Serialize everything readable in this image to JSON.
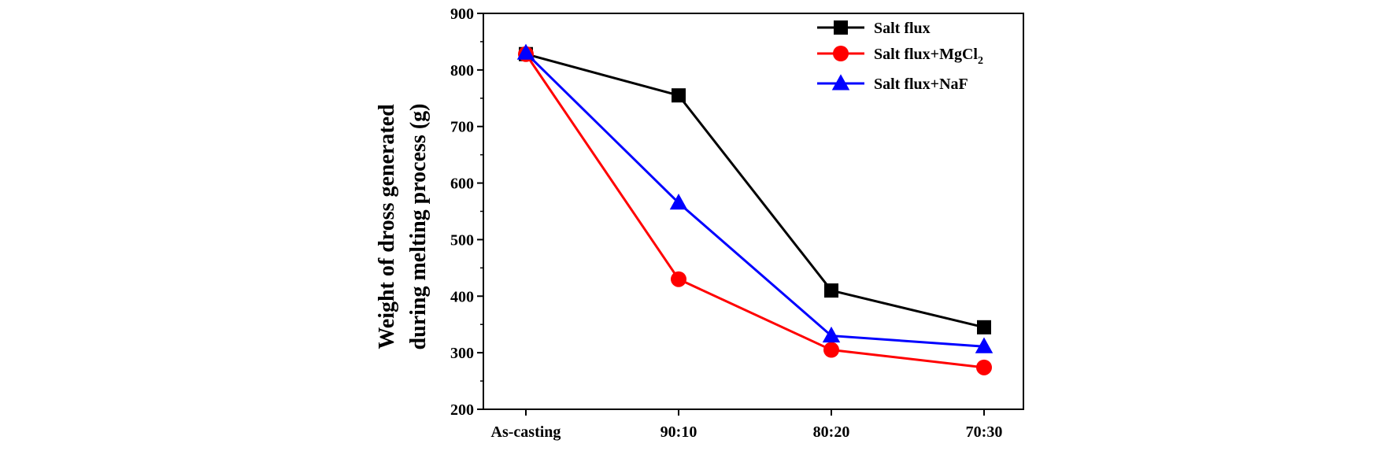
{
  "chart_data": {
    "type": "line",
    "title": "",
    "xlabel": "",
    "ylabel_lines": [
      "Weight of dross generated",
      "during melting process (g)"
    ],
    "categories": [
      "As-casting",
      "90:10",
      "80:20",
      "70:30"
    ],
    "ylim": [
      200,
      900
    ],
    "yticks": [
      200,
      300,
      400,
      500,
      600,
      700,
      800,
      900
    ],
    "grid": false,
    "legend_position": "top-right",
    "series": [
      {
        "name": "Salt flux",
        "name_base": "Salt flux",
        "name_sub": "",
        "marker": "square",
        "color": "#000000",
        "values": [
          828,
          755,
          410,
          345
        ]
      },
      {
        "name": "Salt flux+MgCl2",
        "name_base": "Salt flux+MgCl",
        "name_sub": "2",
        "marker": "circle",
        "color": "#ff0000",
        "values": [
          828,
          430,
          305,
          274
        ]
      },
      {
        "name": "Salt flux+NaF",
        "name_base": "Salt flux+NaF",
        "name_sub": "",
        "marker": "triangle",
        "color": "#0000ff",
        "values": [
          830,
          565,
          330,
          311
        ]
      }
    ]
  }
}
